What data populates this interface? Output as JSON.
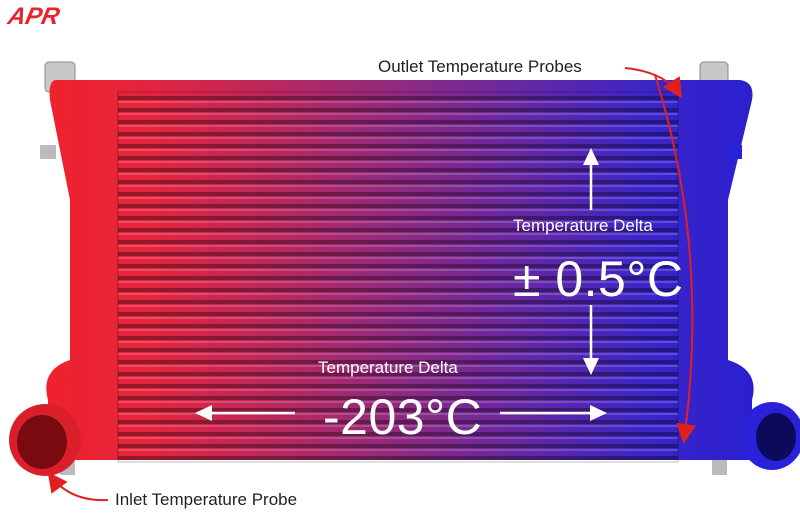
{
  "logo": {
    "text": "APR",
    "color": "#e8232a"
  },
  "annotations": {
    "outlet_probes": "Outlet Temperature Probes",
    "inlet_probe": "Inlet Temperature Probe",
    "vertical_delta_label": "Temperature Delta",
    "vertical_delta_value": "± 0.5°C",
    "horizontal_delta_label": "Temperature Delta",
    "horizontal_delta_value": "-203°C"
  },
  "colors": {
    "hot": "#e8232a",
    "cold": "#2a1fd0",
    "arrow": "#e02020",
    "text_on_image": "#ffffff"
  }
}
